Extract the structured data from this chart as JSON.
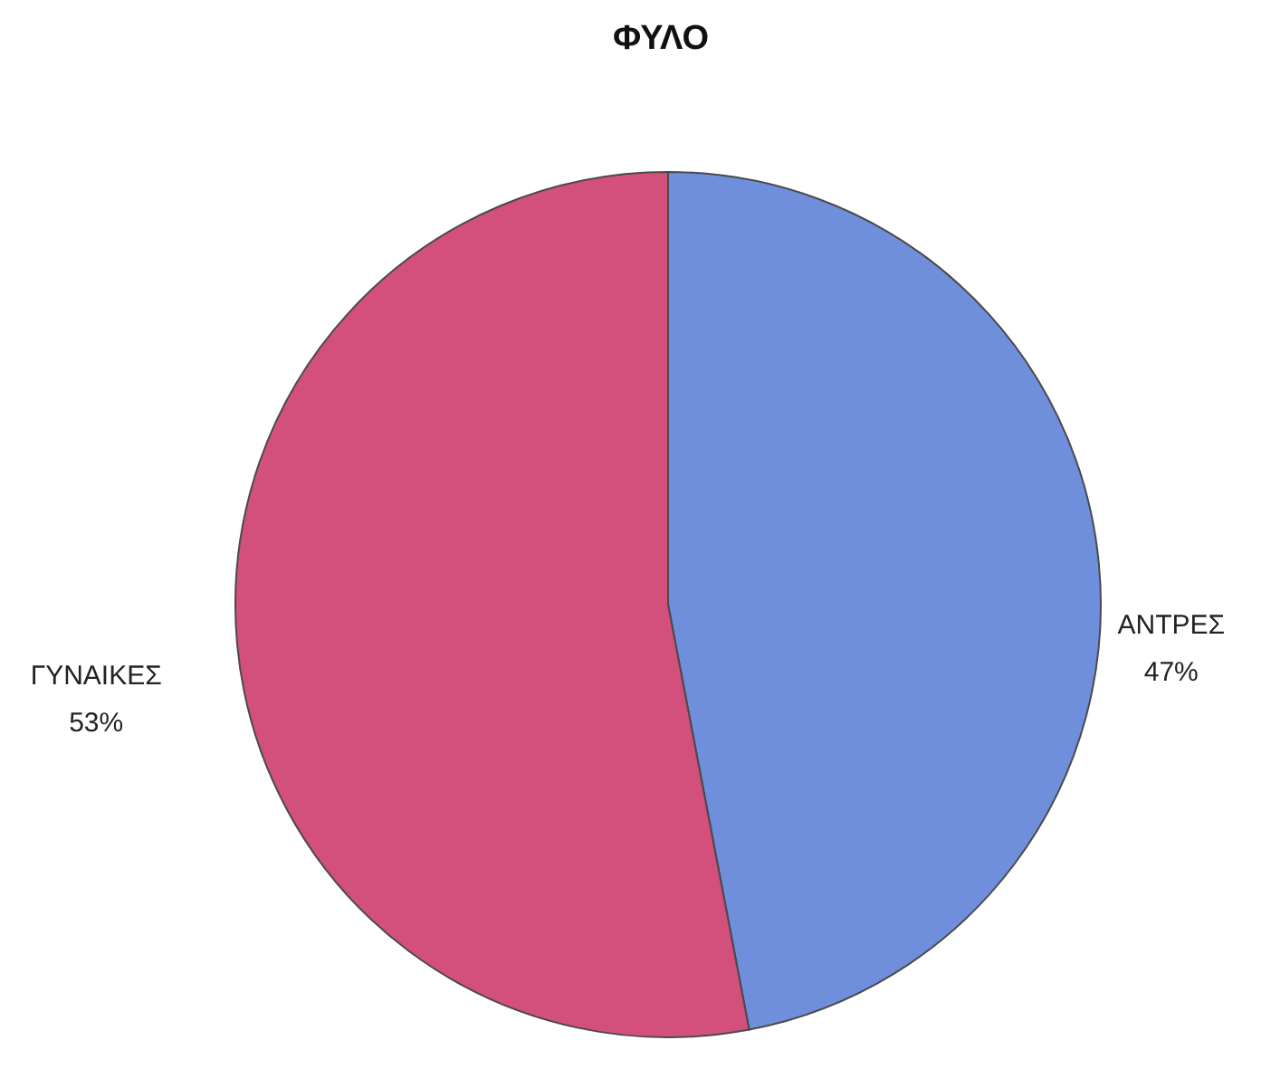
{
  "chart_data": {
    "type": "pie",
    "title": "ΦΥΛΟ",
    "categories": [
      "ΑΝΤΡΕΣ",
      "ΓΥΝΑΙΚΕΣ"
    ],
    "values": [
      47,
      53
    ],
    "value_labels": [
      "47%",
      "53%"
    ],
    "colors": [
      "#6f8fdc",
      "#d4507c"
    ],
    "legend": false
  }
}
